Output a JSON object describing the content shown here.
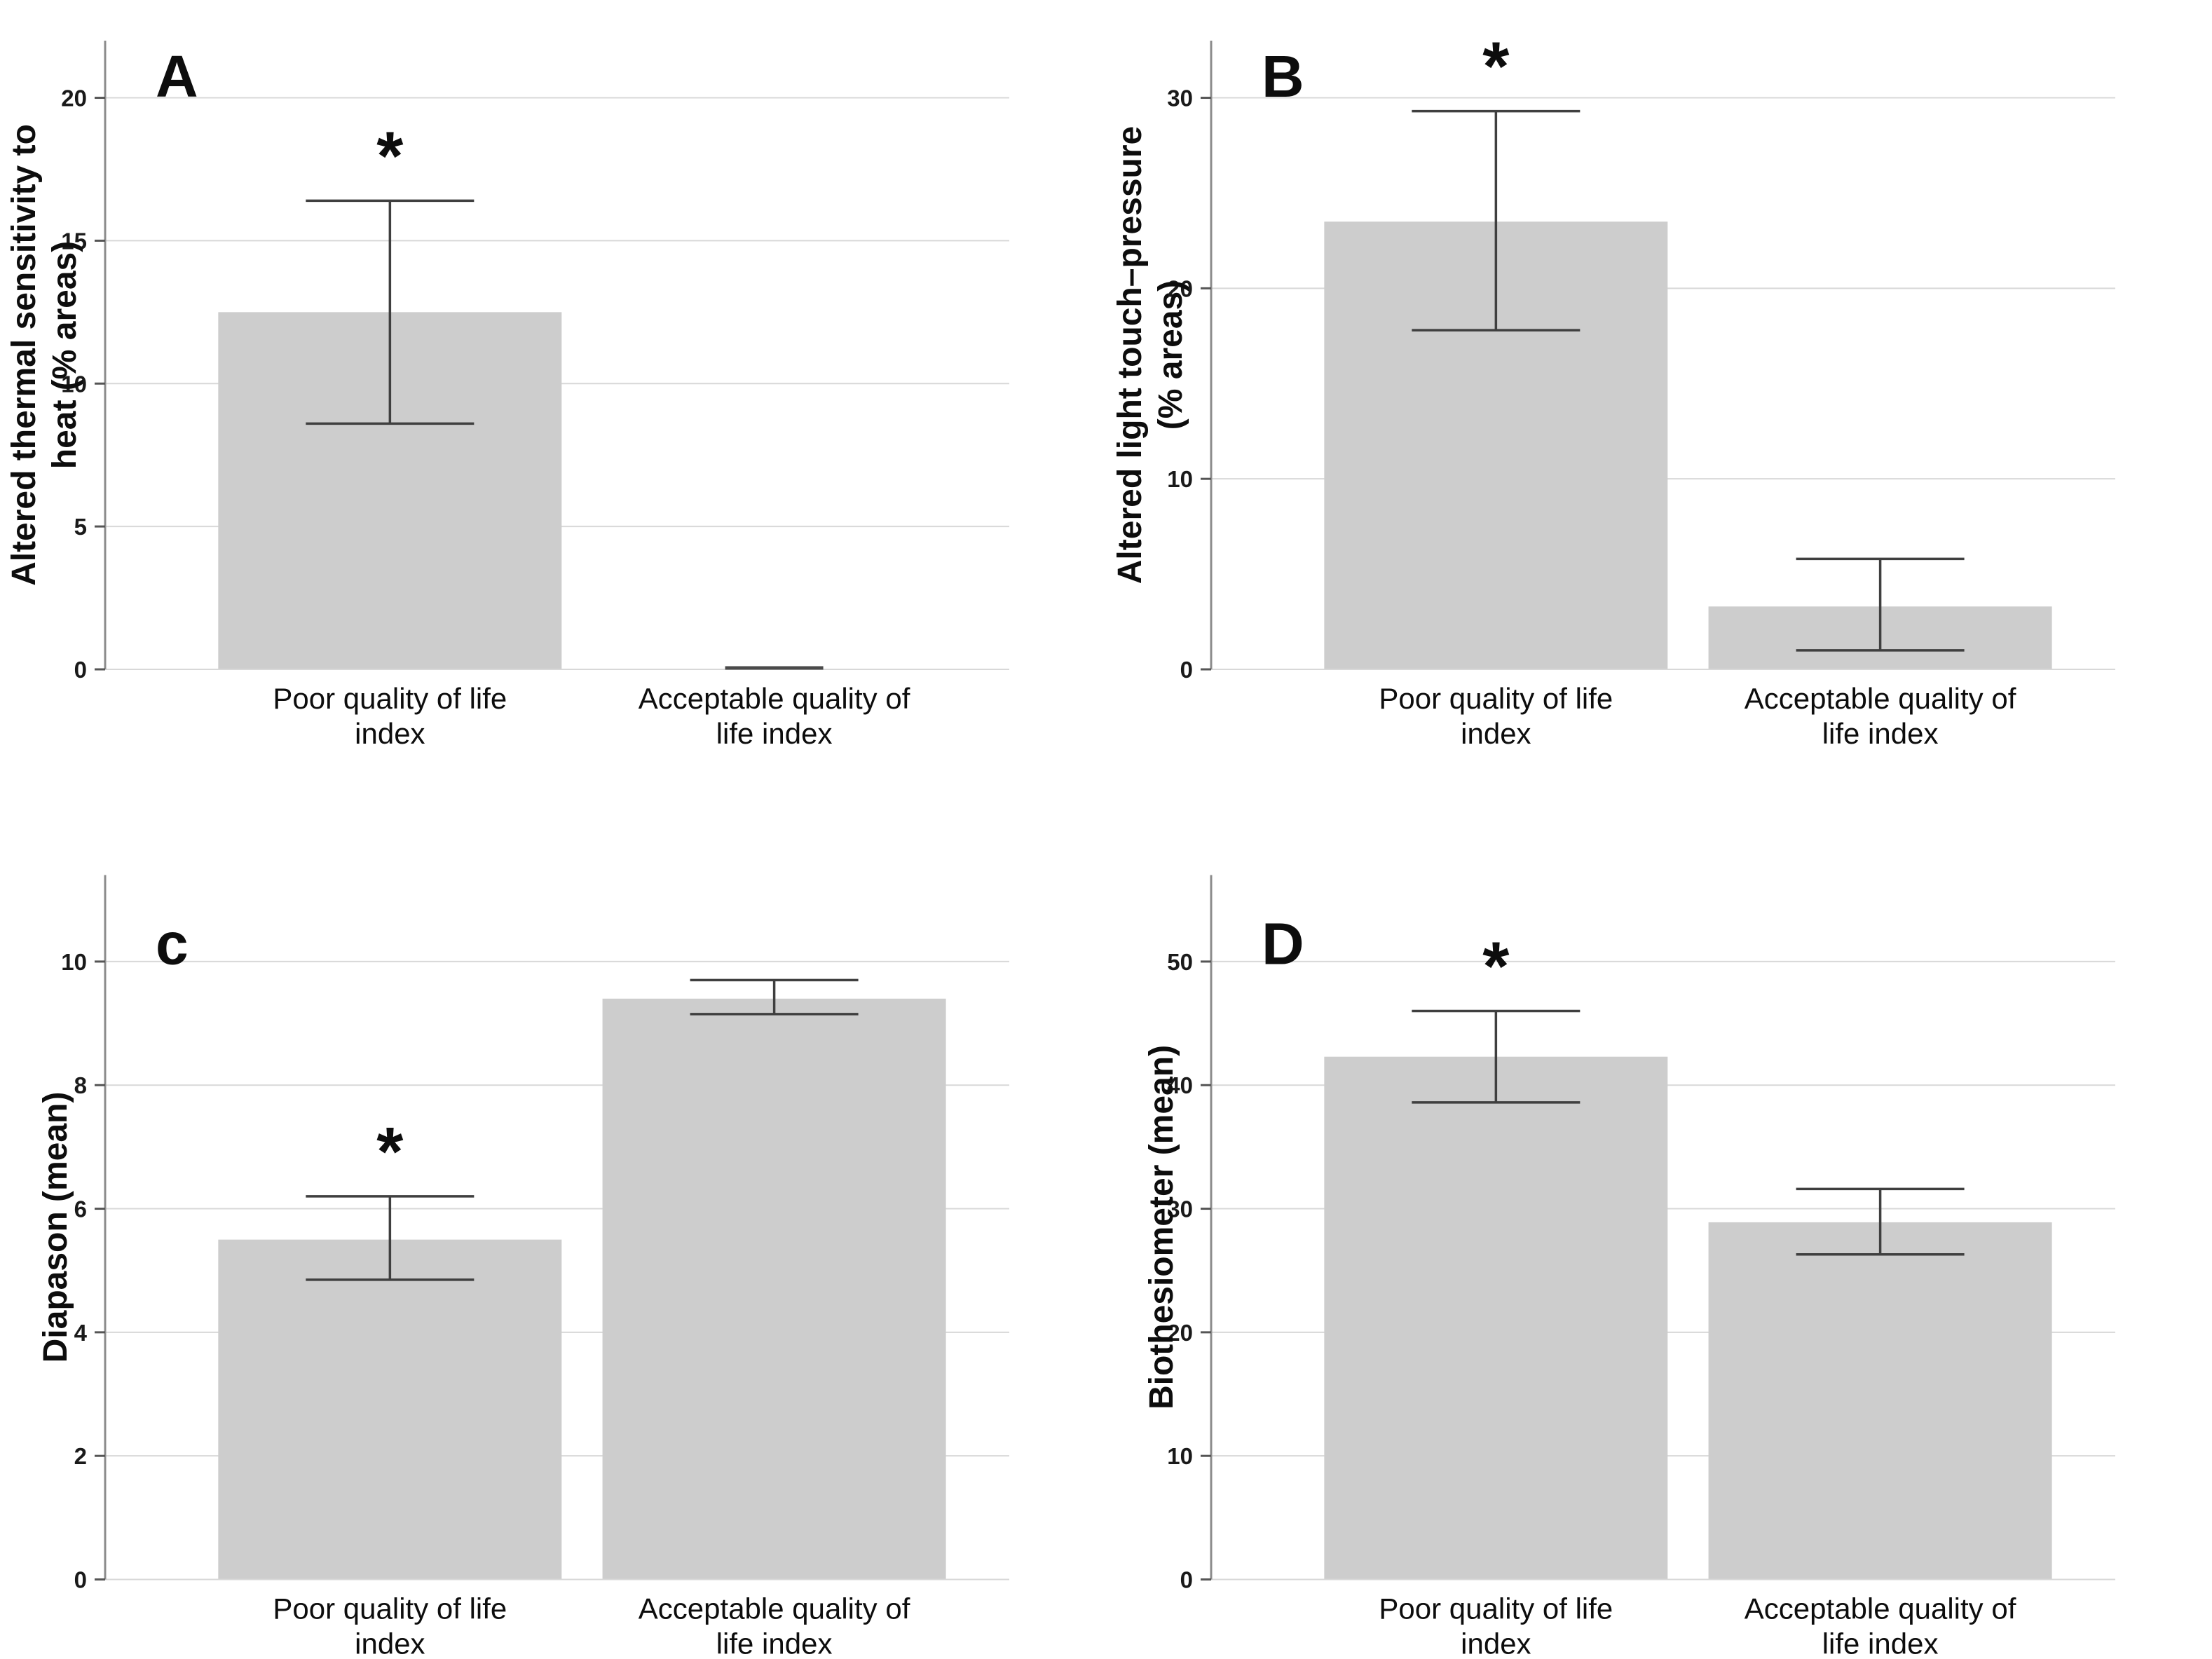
{
  "significance_symbol": "*",
  "colors": {
    "bar_fill": "#cdcdcd",
    "grid_line": "#d8d8d8",
    "axis_line": "#8c8c8c",
    "error_bar": "#3f3f3f",
    "zero_marker": "#4a4a4a",
    "text": "#0d0d0d"
  },
  "chart_data": [
    {
      "type": "bar",
      "panel_letter": "A",
      "ylabel": "Altered thermal sensitivity to heat (% areas)",
      "ylabel_lines": [
        "Altered thermal sensitivity to",
        "heat (% areas)"
      ],
      "categories": [
        "Poor quality of life index",
        "Acceptable quality of life index"
      ],
      "category_label_lines": [
        [
          "Poor quality of life",
          "index"
        ],
        [
          "Acceptable quality of",
          "life index"
        ]
      ],
      "values": [
        12.5,
        0
      ],
      "error_low": [
        8.6,
        null
      ],
      "error_high": [
        16.4,
        null
      ],
      "significant": [
        true,
        false
      ],
      "zero_marker": [
        false,
        true
      ],
      "yticks": [
        0,
        5,
        10,
        15,
        20
      ],
      "ylim": [
        0,
        22
      ],
      "grid": true,
      "legend": null
    },
    {
      "type": "bar",
      "panel_letter": "B",
      "ylabel": "Altered light touch–pressure (% areas)",
      "ylabel_lines": [
        "Altered light touch–pressure",
        "(% areas)"
      ],
      "categories": [
        "Poor quality of life index",
        "Acceptable quality of life index"
      ],
      "category_label_lines": [
        [
          "Poor quality of life",
          "index"
        ],
        [
          "Acceptable quality of",
          "life index"
        ]
      ],
      "values": [
        23.5,
        3.3
      ],
      "error_low": [
        17.8,
        1.0
      ],
      "error_high": [
        29.3,
        5.8
      ],
      "significant": [
        true,
        false
      ],
      "zero_marker": [
        false,
        false
      ],
      "yticks": [
        0,
        10,
        20,
        30
      ],
      "ylim": [
        0,
        33
      ],
      "grid": true,
      "legend": null
    },
    {
      "type": "bar",
      "panel_letter": "c",
      "ylabel": "Diapason (mean)",
      "ylabel_lines": [
        "Diapason (mean)"
      ],
      "categories": [
        "Poor quality of life index",
        "Acceptable quality of life index"
      ],
      "category_label_lines": [
        [
          "Poor quality of life",
          "index"
        ],
        [
          "Acceptable quality of",
          "life index"
        ]
      ],
      "values": [
        5.5,
        9.4
      ],
      "error_low": [
        4.85,
        9.15
      ],
      "error_high": [
        6.2,
        9.7
      ],
      "significant": [
        true,
        false
      ],
      "zero_marker": [
        false,
        false
      ],
      "yticks": [
        0,
        2,
        4,
        6,
        8,
        10
      ],
      "ylim": [
        0,
        11.4
      ],
      "grid": true,
      "legend": null
    },
    {
      "type": "bar",
      "panel_letter": "D",
      "ylabel": "Biothesiometer (mean)",
      "ylabel_lines": [
        "Biothesiometer (mean)"
      ],
      "categories": [
        "Poor quality of life index",
        "Acceptable quality of life index"
      ],
      "category_label_lines": [
        [
          "Poor quality of life",
          "index"
        ],
        [
          "Acceptable quality of",
          "life index"
        ]
      ],
      "values": [
        42.3,
        28.9
      ],
      "error_low": [
        38.6,
        26.3
      ],
      "error_high": [
        46.0,
        31.6
      ],
      "significant": [
        true,
        false
      ],
      "zero_marker": [
        false,
        false
      ],
      "yticks": [
        0,
        10,
        20,
        30,
        40,
        50
      ],
      "ylim": [
        0,
        57
      ],
      "grid": true,
      "legend": null
    }
  ]
}
